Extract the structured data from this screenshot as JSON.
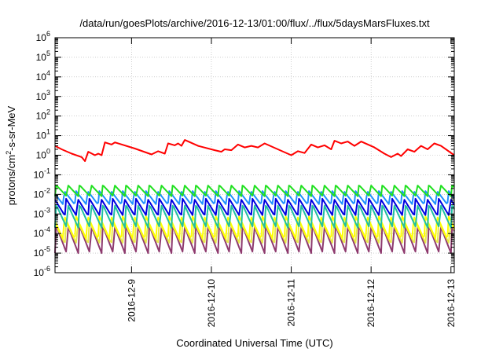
{
  "chart_data": {
    "type": "line",
    "title": "/data/run/goesPlots/archive/2016-12-13/01:00/flux/../flux/5daysMarsFluxes.txt",
    "xlabel": "Coordinated Universal Time (UTC)",
    "ylabel_parts": [
      "protons/cm",
      "2",
      "-s-sr-MeV"
    ],
    "x_range": [
      "2016-12-08 01:00",
      "2016-12-13 01:00"
    ],
    "x_ticks": [
      "2016-12-9",
      "2016-12-10",
      "2016-12-11",
      "2016-12-12",
      "2016-12-13"
    ],
    "y_scale": "log",
    "y_range": [
      1e-06,
      1000000.0
    ],
    "y_ticks": [
      {
        "base": "10",
        "exp": "6"
      },
      {
        "base": "10",
        "exp": "5"
      },
      {
        "base": "10",
        "exp": "4"
      },
      {
        "base": "10",
        "exp": "3"
      },
      {
        "base": "10",
        "exp": "2"
      },
      {
        "base": "10",
        "exp": "1"
      },
      {
        "base": "10",
        "exp": "0"
      },
      {
        "base": "10",
        "exp": "-1"
      },
      {
        "base": "10",
        "exp": "-2"
      },
      {
        "base": "10",
        "exp": "-3"
      },
      {
        "base": "10",
        "exp": "-4"
      },
      {
        "base": "10",
        "exp": "-5"
      },
      {
        "base": "10",
        "exp": "-6"
      }
    ],
    "grid": true,
    "legend": "none",
    "series": [
      {
        "color": "#8e3a6e",
        "period_hours": 3.5,
        "peak": 0.00025,
        "trough": 1e-05
      },
      {
        "color": "#e8e84a",
        "period_hours": 3.5,
        "peak": 0.0004,
        "trough": 3e-05
      },
      {
        "color": "#ffff00",
        "period_hours": 3.5,
        "peak": 0.0008,
        "trough": 5e-05
      },
      {
        "color": "#20c0a0",
        "period_hours": 3.5,
        "peak": 0.003,
        "trough": 0.0002
      },
      {
        "color": "#0000e0",
        "period_hours": 3.5,
        "peak": 0.006,
        "trough": 0.0008
      },
      {
        "color": "#2090ff",
        "period_hours": 3.5,
        "peak": 0.015,
        "trough": 0.003
      },
      {
        "color": "#20e020",
        "period_hours": 3.5,
        "peak": 0.03,
        "trough": 0.008
      },
      {
        "color": "#ff0000",
        "points": [
          [
            "2016-12-08 01:00",
            3.0
          ],
          [
            "2016-12-08 03:00",
            2.0
          ],
          [
            "2016-12-08 06:00",
            1.2
          ],
          [
            "2016-12-08 09:00",
            0.8
          ],
          [
            "2016-12-08 10:00",
            0.5
          ],
          [
            "2016-12-08 11:00",
            1.5
          ],
          [
            "2016-12-08 13:00",
            1.0
          ],
          [
            "2016-12-08 14:00",
            1.2
          ],
          [
            "2016-12-08 15:00",
            1.0
          ],
          [
            "2016-12-08 16:00",
            4.5
          ],
          [
            "2016-12-08 18:00",
            3.5
          ],
          [
            "2016-12-08 19:00",
            4.5
          ],
          [
            "2016-12-09 01:00",
            2.2
          ],
          [
            "2016-12-09 06:00",
            1.1
          ],
          [
            "2016-12-09 08:00",
            1.6
          ],
          [
            "2016-12-09 10:00",
            1.2
          ],
          [
            "2016-12-09 11:00",
            4.0
          ],
          [
            "2016-12-09 13:00",
            3.2
          ],
          [
            "2016-12-09 14:00",
            4.0
          ],
          [
            "2016-12-09 15:00",
            3.0
          ],
          [
            "2016-12-09 16:00",
            6.0
          ],
          [
            "2016-12-09 20:00",
            3.0
          ],
          [
            "2016-12-10 01:00",
            1.8
          ],
          [
            "2016-12-10 03:00",
            1.5
          ],
          [
            "2016-12-10 04:00",
            2.0
          ],
          [
            "2016-12-10 06:00",
            1.8
          ],
          [
            "2016-12-10 08:00",
            3.5
          ],
          [
            "2016-12-10 10:00",
            2.5
          ],
          [
            "2016-12-10 12:00",
            3.0
          ],
          [
            "2016-12-10 14:00",
            2.5
          ],
          [
            "2016-12-10 16:00",
            4.0
          ],
          [
            "2016-12-10 20:00",
            2.0
          ],
          [
            "2016-12-11 00:00",
            1.0
          ],
          [
            "2016-12-11 02:00",
            1.6
          ],
          [
            "2016-12-11 04:00",
            1.3
          ],
          [
            "2016-12-11 06:00",
            3.5
          ],
          [
            "2016-12-11 08:00",
            2.5
          ],
          [
            "2016-12-11 10:00",
            3.2
          ],
          [
            "2016-12-11 12:00",
            2.0
          ],
          [
            "2016-12-11 13:00",
            5.5
          ],
          [
            "2016-12-11 15:00",
            4.0
          ],
          [
            "2016-12-11 17:00",
            5.0
          ],
          [
            "2016-12-11 19:00",
            3.0
          ],
          [
            "2016-12-11 21:00",
            5.0
          ],
          [
            "2016-12-12 01:00",
            2.5
          ],
          [
            "2016-12-12 04:00",
            1.2
          ],
          [
            "2016-12-12 06:00",
            0.8
          ],
          [
            "2016-12-12 08:00",
            1.2
          ],
          [
            "2016-12-12 09:00",
            0.9
          ],
          [
            "2016-12-12 11:00",
            2.0
          ],
          [
            "2016-12-12 13:00",
            1.5
          ],
          [
            "2016-12-12 15:00",
            3.0
          ],
          [
            "2016-12-12 17:00",
            2.0
          ],
          [
            "2016-12-12 19:00",
            4.0
          ],
          [
            "2016-12-12 21:00",
            3.0
          ],
          [
            "2016-12-13 01:00",
            1.0
          ]
        ]
      }
    ]
  }
}
